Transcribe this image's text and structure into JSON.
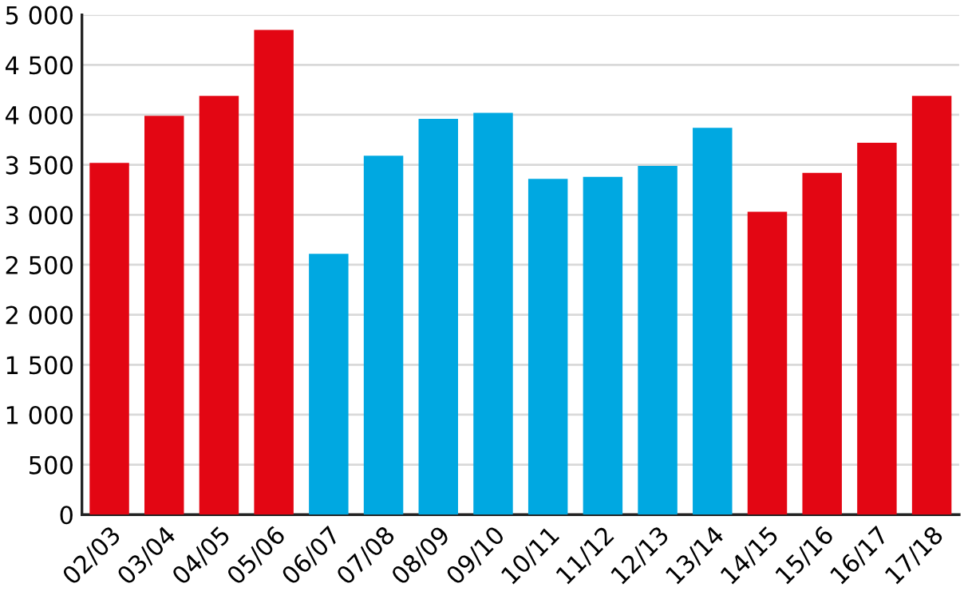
{
  "chart_data": {
    "type": "bar",
    "categories": [
      "02/03",
      "03/04",
      "04/05",
      "05/06",
      "06/07",
      "07/08",
      "08/09",
      "09/10",
      "10/11",
      "11/12",
      "12/13",
      "13/14",
      "14/15",
      "15/16",
      "16/17",
      "17/18"
    ],
    "values": [
      3520,
      3990,
      4190,
      4850,
      2610,
      3590,
      3960,
      4020,
      3360,
      3380,
      3490,
      3870,
      3030,
      3420,
      3720,
      4190
    ],
    "colors": [
      "#e30613",
      "#e30613",
      "#e30613",
      "#e30613",
      "#00a8e1",
      "#00a8e1",
      "#00a8e1",
      "#00a8e1",
      "#00a8e1",
      "#00a8e1",
      "#00a8e1",
      "#00a8e1",
      "#e30613",
      "#e30613",
      "#e30613",
      "#e30613"
    ],
    "ylim": [
      0,
      5000
    ],
    "yticks": [
      {
        "value": 0,
        "label": "0"
      },
      {
        "value": 500,
        "label": "500"
      },
      {
        "value": 1000,
        "label": "1 000"
      },
      {
        "value": 1500,
        "label": "1 500"
      },
      {
        "value": 2000,
        "label": "2 000"
      },
      {
        "value": 2500,
        "label": "2 500"
      },
      {
        "value": 3000,
        "label": "3 000"
      },
      {
        "value": 3500,
        "label": "3 500"
      },
      {
        "value": 4000,
        "label": "4 000"
      },
      {
        "value": 4500,
        "label": "4 500"
      },
      {
        "value": 5000,
        "label": "5 000"
      }
    ],
    "grid": "y"
  }
}
